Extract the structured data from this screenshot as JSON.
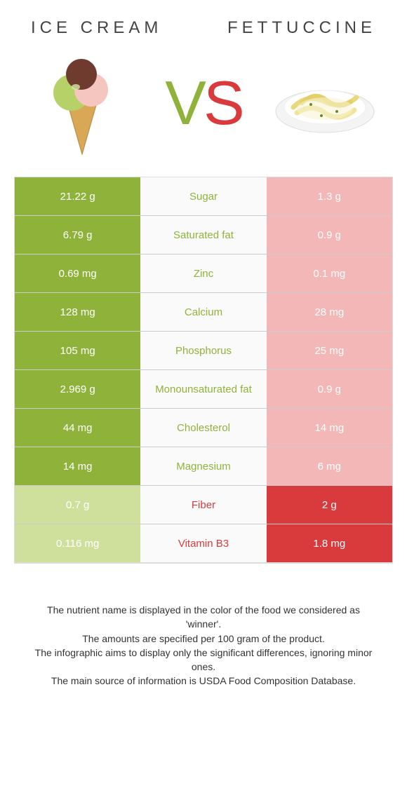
{
  "colors": {
    "left": "#8fb33a",
    "right": "#d93b3c",
    "left_loser_bg": "#cfe09d",
    "right_loser_bg": "#f3b7b7",
    "mid_bg": "#fafafa"
  },
  "header": {
    "left_title": "ICE CREAM",
    "right_title": "FETTUCCINE",
    "vs_v": "V",
    "vs_s": "S"
  },
  "rows": [
    {
      "label": "Sugar",
      "left": "21.22 g",
      "right": "1.3 g",
      "winner": "left"
    },
    {
      "label": "Saturated fat",
      "left": "6.79 g",
      "right": "0.9 g",
      "winner": "left"
    },
    {
      "label": "Zinc",
      "left": "0.69 mg",
      "right": "0.1 mg",
      "winner": "left"
    },
    {
      "label": "Calcium",
      "left": "128 mg",
      "right": "28 mg",
      "winner": "left"
    },
    {
      "label": "Phosphorus",
      "left": "105 mg",
      "right": "25 mg",
      "winner": "left"
    },
    {
      "label": "Monounsaturated fat",
      "left": "2.969 g",
      "right": "0.9 g",
      "winner": "left"
    },
    {
      "label": "Cholesterol",
      "left": "44 mg",
      "right": "14 mg",
      "winner": "left"
    },
    {
      "label": "Magnesium",
      "left": "14 mg",
      "right": "6 mg",
      "winner": "left"
    },
    {
      "label": "Fiber",
      "left": "0.7 g",
      "right": "2 g",
      "winner": "right"
    },
    {
      "label": "Vitamin B3",
      "left": "0.116 mg",
      "right": "1.8 mg",
      "winner": "right"
    }
  ],
  "notes": [
    "The nutrient name is displayed in the color of the food we considered as 'winner'.",
    "The amounts are specified per 100 gram of the product.",
    "The infographic aims to display only the significant differences, ignoring minor ones.",
    "The main source of information is USDA Food Composition Database."
  ]
}
